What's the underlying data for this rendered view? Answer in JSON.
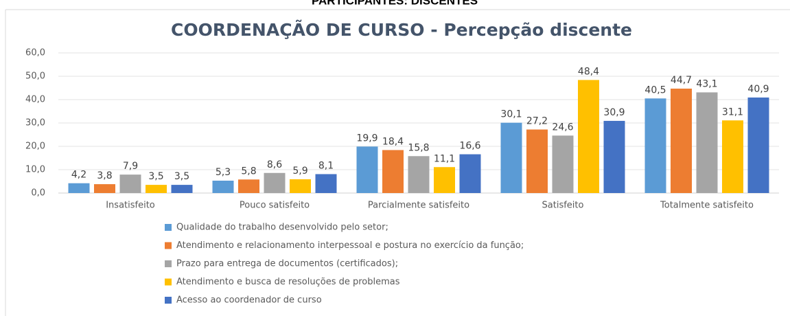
{
  "page_heading": "PARTICIPANTES: DISCENTES",
  "chart_data": {
    "type": "bar",
    "title": "COORDENAÇÃO DE CURSO  - Percepção discente",
    "categories": [
      "Insatisfeito",
      "Pouco satisfeito",
      "Parcialmente satisfeito",
      "Satisfeito",
      "Totalmente satisfeito"
    ],
    "series": [
      {
        "name": "Qualidade do trabalho desenvolvido pelo setor;",
        "color": "#5b9bd5",
        "values": [
          4.2,
          5.3,
          19.9,
          30.1,
          40.5
        ],
        "value_labels": [
          "4,2",
          "5,3",
          "19,9",
          "30,1",
          "40,5"
        ]
      },
      {
        "name": "Atendimento e relacionamento interpessoal e postura no exercício da função;",
        "color": "#ed7d31",
        "values": [
          3.8,
          5.8,
          18.4,
          27.2,
          44.7
        ],
        "value_labels": [
          "3,8",
          "5,8",
          "18,4",
          "27,2",
          "44,7"
        ]
      },
      {
        "name": "Prazo para entrega de documentos (certificados);",
        "color": "#a5a5a5",
        "values": [
          7.9,
          8.6,
          15.8,
          24.6,
          43.1
        ],
        "value_labels": [
          "7,9",
          "8,6",
          "15,8",
          "24,6",
          "43,1"
        ]
      },
      {
        "name": "Atendimento e busca de resoluções de problemas",
        "color": "#ffc000",
        "values": [
          3.5,
          5.9,
          11.1,
          48.4,
          31.1
        ],
        "value_labels": [
          "3,5",
          "5,9",
          "11,1",
          "48,4",
          "31,1"
        ]
      },
      {
        "name": "Acesso ao coordenador de curso",
        "color": "#4472c4",
        "values": [
          3.5,
          8.1,
          16.6,
          30.9,
          40.9
        ],
        "value_labels": [
          "3,5",
          "8,1",
          "16,6",
          "30,9",
          "40,9"
        ]
      }
    ],
    "ylim": [
      0,
      60
    ],
    "yticks": [
      {
        "value": 0,
        "label": "0,0"
      },
      {
        "value": 10,
        "label": "10,0"
      },
      {
        "value": 20,
        "label": "20,0"
      },
      {
        "value": 30,
        "label": "30,0"
      },
      {
        "value": 40,
        "label": "40,0"
      },
      {
        "value": 50,
        "label": "50,0"
      },
      {
        "value": 60,
        "label": "60,0"
      }
    ],
    "grid": true,
    "legend": "bottom"
  }
}
